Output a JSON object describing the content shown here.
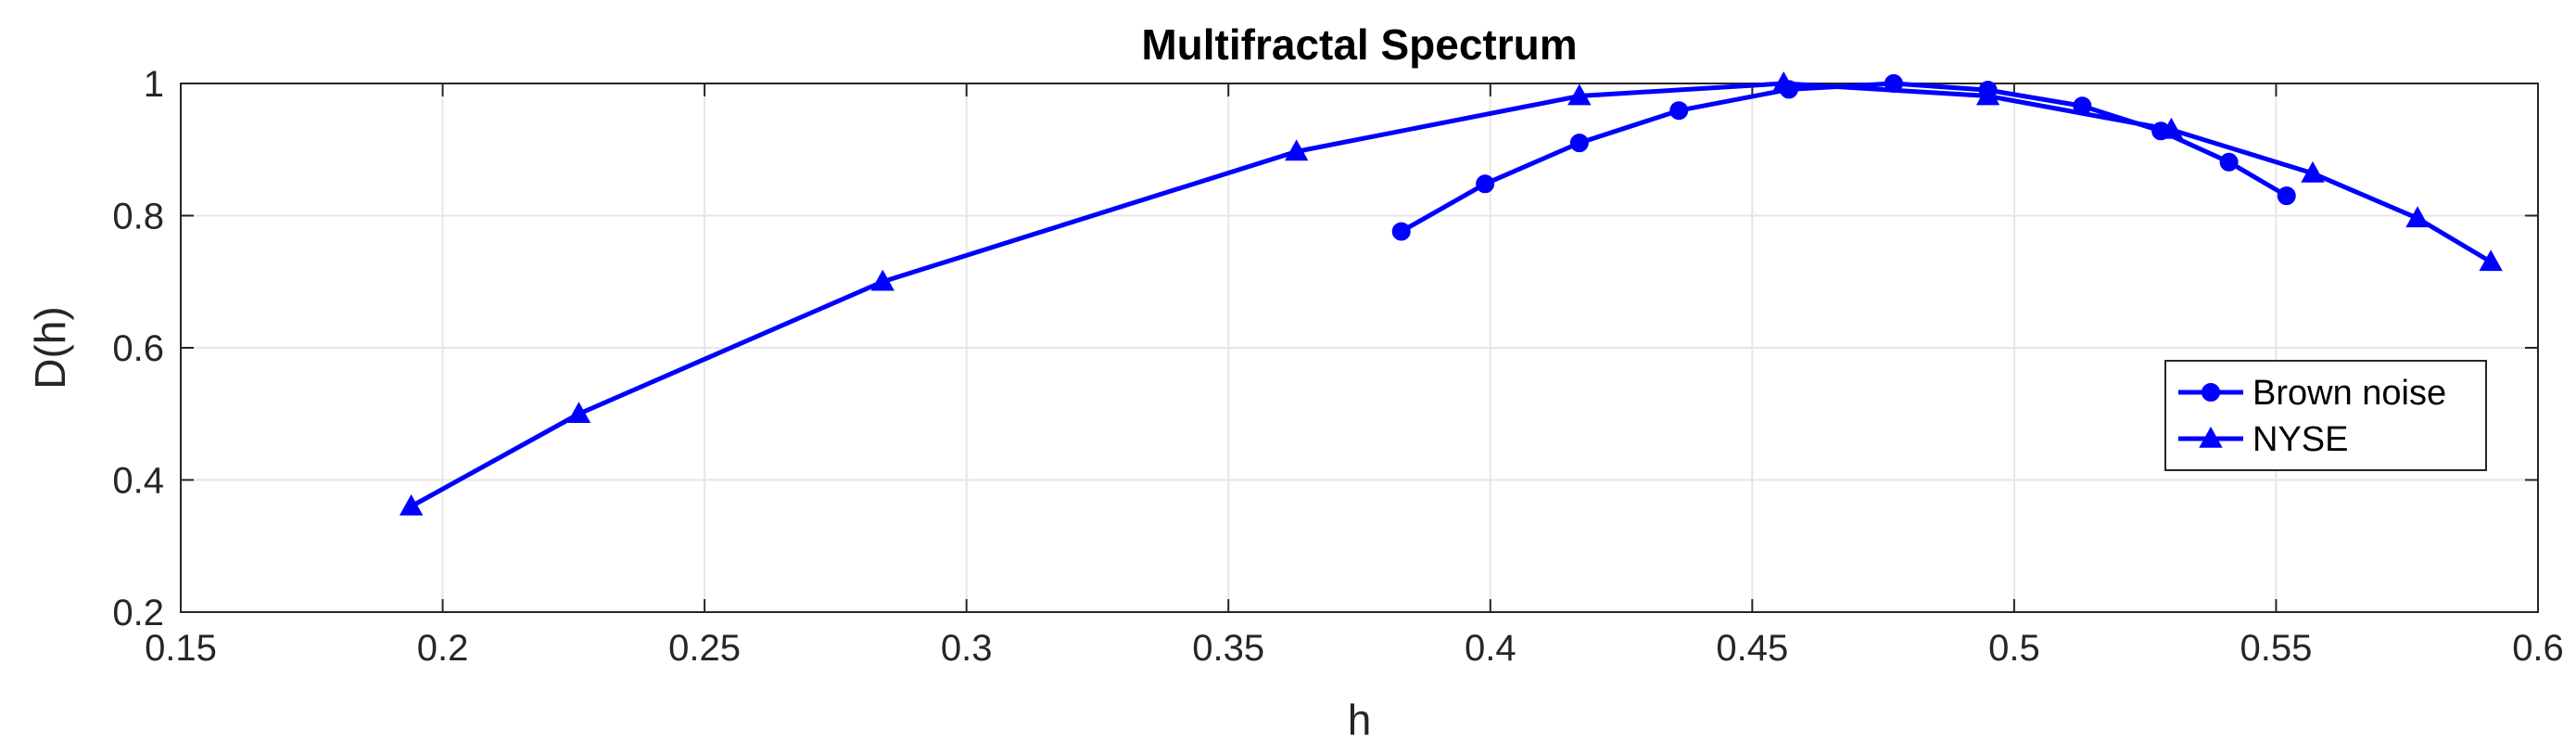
{
  "chart_data": {
    "type": "line",
    "title": "Multifractal Spectrum",
    "xlabel": "h",
    "ylabel": "D(h)",
    "xlim": [
      0.15,
      0.6
    ],
    "ylim": [
      0.2,
      1.0
    ],
    "xticks": [
      0.15,
      0.2,
      0.25,
      0.3,
      0.35,
      0.4,
      0.45,
      0.5,
      0.55,
      0.6
    ],
    "xtick_labels": [
      "0.15",
      "0.2",
      "0.25",
      "0.3",
      "0.35",
      "0.4",
      "0.45",
      "0.5",
      "0.55",
      "0.6"
    ],
    "yticks": [
      0.2,
      0.4,
      0.6,
      0.8,
      1.0
    ],
    "ytick_labels": [
      "0.2",
      "0.4",
      "0.6",
      "0.8",
      "1"
    ],
    "grid": true,
    "legend_position": "right",
    "series": [
      {
        "name": "Brown noise",
        "marker": "circle",
        "color": "#0000ff",
        "x": [
          0.383,
          0.399,
          0.417,
          0.436,
          0.457,
          0.477,
          0.495,
          0.513,
          0.528,
          0.541,
          0.552
        ],
        "y": [
          0.776,
          0.848,
          0.91,
          0.959,
          0.991,
          1.0,
          0.99,
          0.966,
          0.928,
          0.881,
          0.83
        ]
      },
      {
        "name": "NYSE",
        "marker": "triangle",
        "color": "#0000ff",
        "x": [
          0.194,
          0.226,
          0.284,
          0.363,
          0.417,
          0.456,
          0.495,
          0.53,
          0.557,
          0.577,
          0.591
        ],
        "y": [
          0.36,
          0.5,
          0.7,
          0.897,
          0.981,
          1.0,
          0.981,
          0.93,
          0.864,
          0.796,
          0.73
        ]
      }
    ]
  }
}
